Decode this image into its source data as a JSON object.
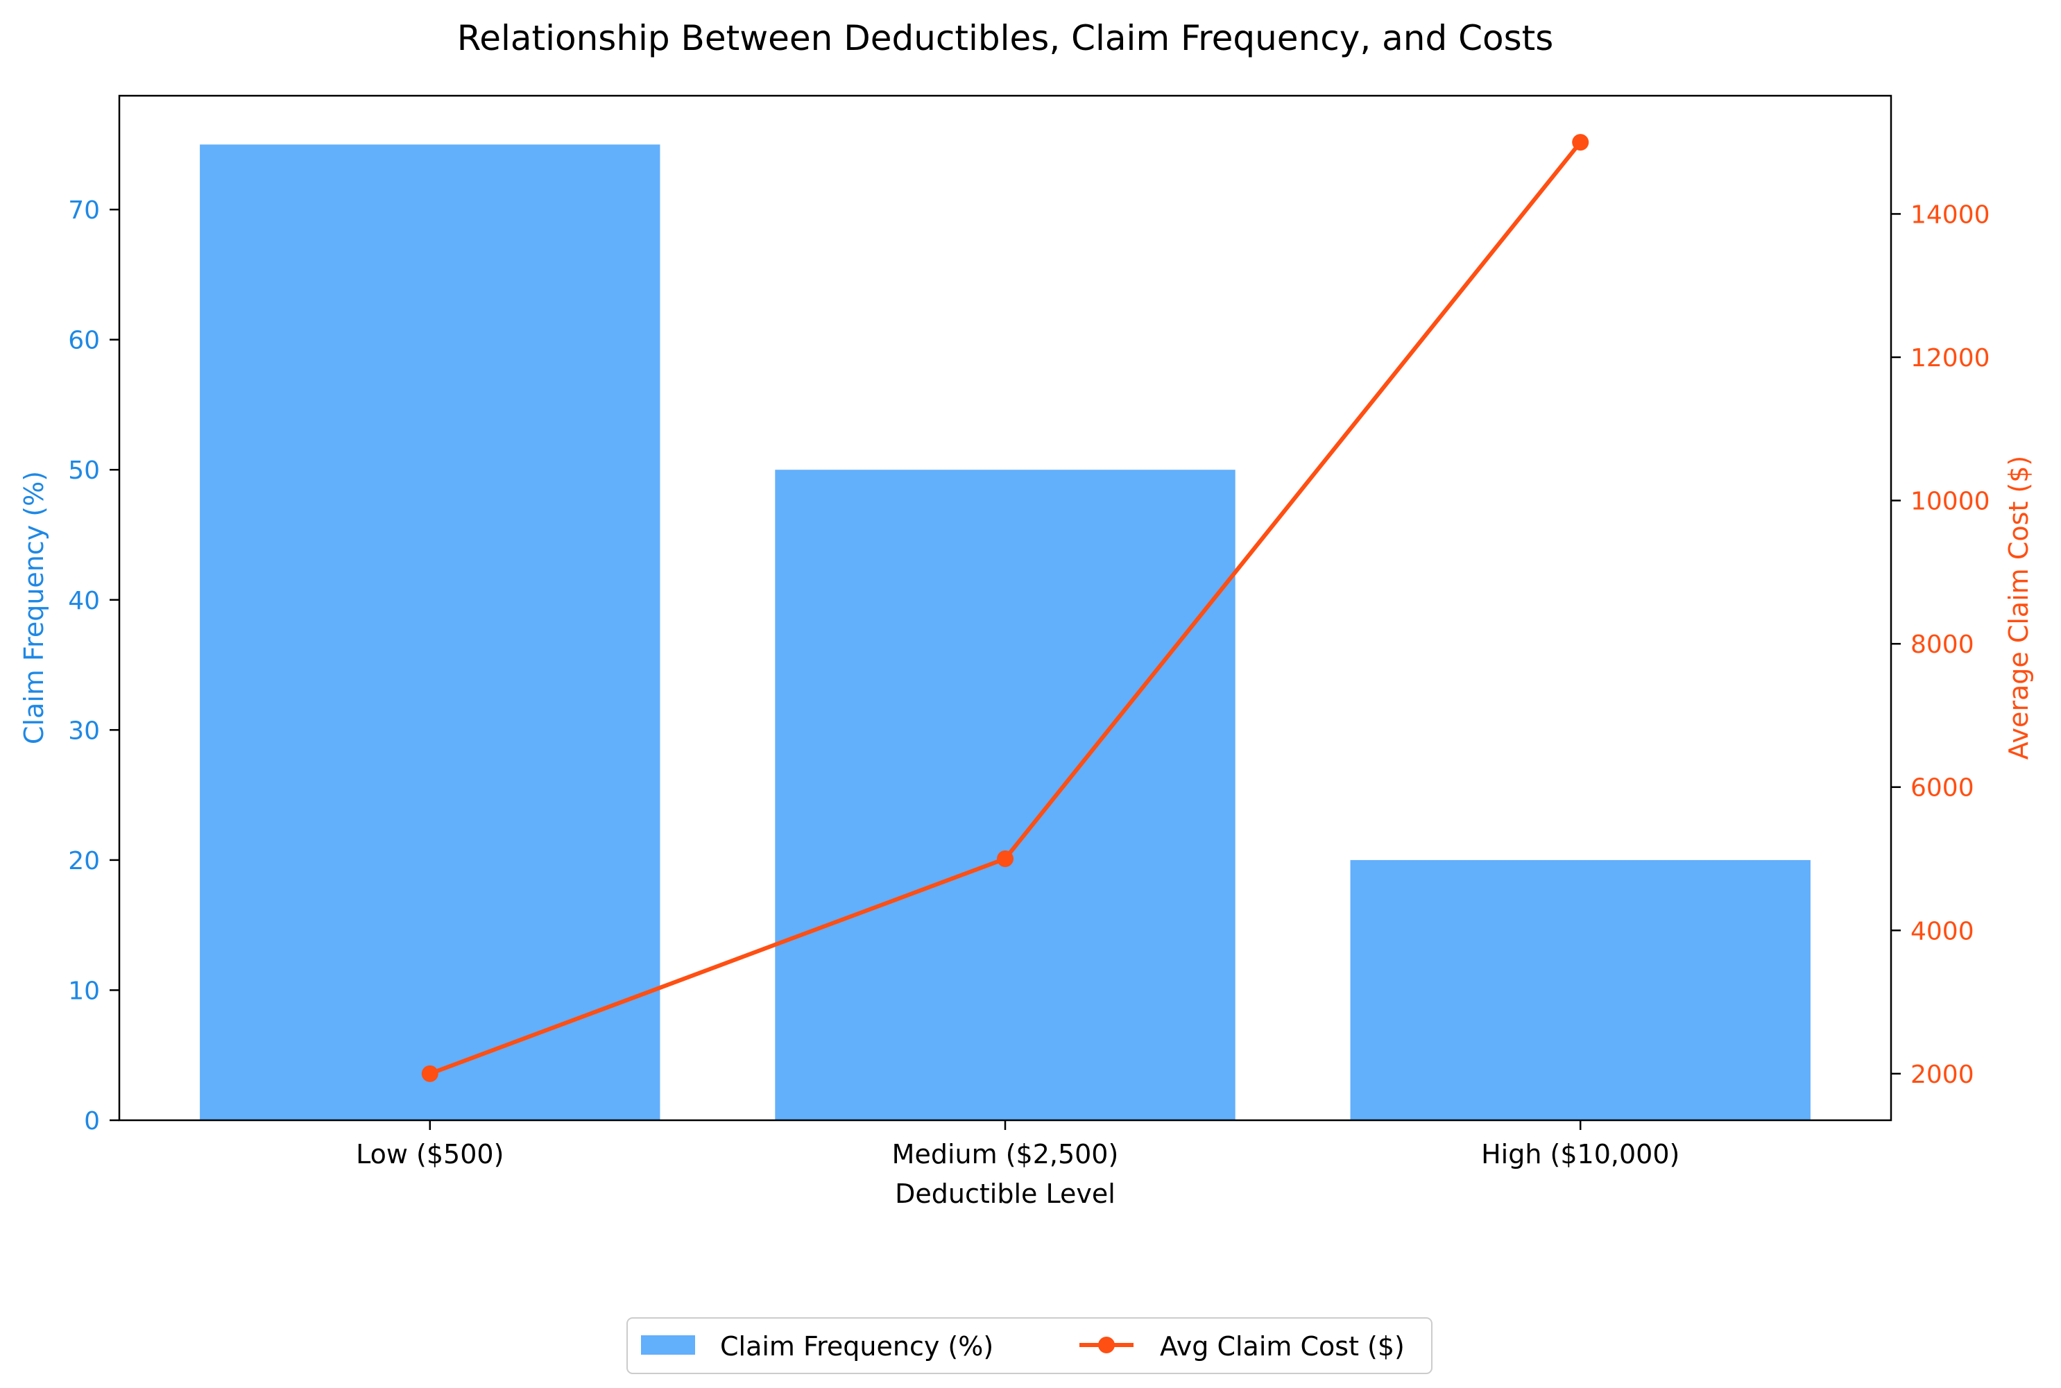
{
  "chart_data": {
    "type": "bar",
    "title": "Relationship Between Deductibles, Claim Frequency, and Costs",
    "xlabel": "Deductible Level",
    "categories": [
      "Low ($500)",
      "Medium ($2,500)",
      "High ($10,000)"
    ],
    "series": [
      {
        "name": "Claim Frequency (%)",
        "type": "bar",
        "axis": "left",
        "color": "#62AFFC",
        "values": [
          75,
          50,
          20
        ]
      },
      {
        "name": "Avg Claim Cost ($)",
        "type": "line",
        "axis": "right",
        "color": "#FF4F12",
        "marker": "circle",
        "values": [
          2000,
          5000,
          15000
        ]
      }
    ],
    "y_left": {
      "label": "Claim Frequency (%)",
      "color": "#1E88E5",
      "range": [
        0,
        78.75
      ],
      "ticks": [
        0,
        10,
        20,
        30,
        40,
        50,
        60,
        70
      ]
    },
    "y_right": {
      "label": "Average Claim Cost ($)",
      "color": "#FF4F12",
      "range": [
        1350,
        15650
      ],
      "ticks": [
        2000,
        4000,
        6000,
        8000,
        10000,
        12000,
        14000
      ]
    },
    "grid": false,
    "legend_position": "bottom-center"
  }
}
